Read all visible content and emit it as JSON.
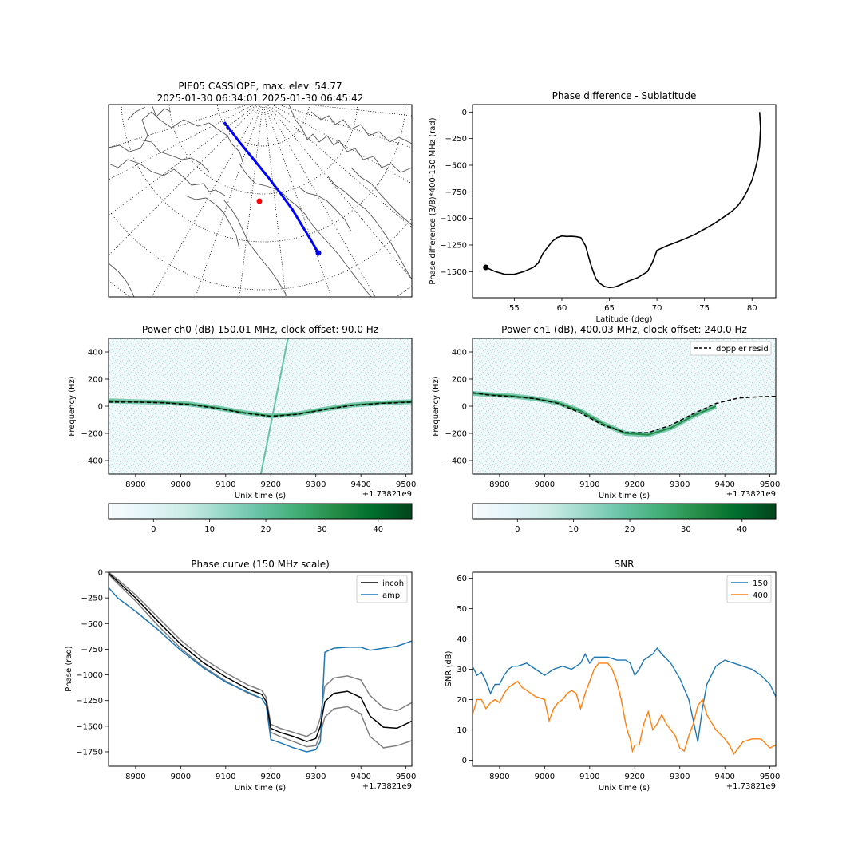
{
  "figure": {
    "map_title_line1": "PIE05 CASSIOPE, max. elev: 54.77",
    "map_title_line2": "2025-01-30 06:34:01 2025-01-30 06:45:42"
  },
  "chart_data": [
    {
      "id": "phase_diff",
      "type": "line",
      "title": "Phase difference - Sublatitude",
      "xlabel": "Latitude (deg)",
      "ylabel": "Phase difference (3/8)*400-150 MHz (rad)",
      "xlim": [
        50.6,
        82.5
      ],
      "ylim": [
        -1745,
        70
      ],
      "xticks": [
        55,
        60,
        65,
        70,
        75,
        80
      ],
      "yticks": [
        0,
        -250,
        -500,
        -750,
        -1000,
        -1250,
        -1500
      ],
      "series": [
        {
          "color": "#000000",
          "x": [
            52.0,
            53.0,
            54.0,
            55.0,
            56.0,
            57.0,
            57.5,
            58.0,
            58.5,
            59.0,
            59.5,
            60.0,
            60.5,
            61.0,
            61.5,
            62.0,
            62.5,
            63.0,
            63.3,
            63.6,
            64.0,
            64.5,
            65.0,
            65.5,
            66.0,
            67.0,
            68.0,
            69.0,
            69.5,
            69.8,
            70.0,
            71.0,
            72.0,
            73.0,
            74.0,
            75.0,
            76.0,
            77.0,
            78.0,
            78.5,
            79.0,
            79.5,
            80.0,
            80.3,
            80.6,
            80.8,
            80.9,
            80.8
          ],
          "values": [
            -1460,
            -1500,
            -1525,
            -1525,
            -1500,
            -1460,
            -1420,
            -1330,
            -1270,
            -1215,
            -1180,
            -1165,
            -1170,
            -1168,
            -1172,
            -1180,
            -1260,
            -1420,
            -1500,
            -1570,
            -1610,
            -1640,
            -1650,
            -1645,
            -1630,
            -1590,
            -1555,
            -1500,
            -1420,
            -1350,
            -1300,
            -1260,
            -1225,
            -1190,
            -1150,
            -1100,
            -1050,
            -990,
            -925,
            -880,
            -820,
            -740,
            -640,
            -550,
            -440,
            -320,
            -150,
            0
          ]
        }
      ],
      "marker": {
        "x": 52.0,
        "y": -1460
      }
    },
    {
      "id": "power_ch0",
      "type": "heatmap",
      "title": "Power ch0 (dB) 150.01 MHz, clock offset: 90.0 Hz",
      "xlabel": "Unix time (s)",
      "ylabel": "Frequency (Hz)",
      "offset_label": "+1.73821e9",
      "xlim": [
        8840,
        9513
      ],
      "ylim": [
        -500,
        500
      ],
      "xticks": [
        8900,
        9000,
        9100,
        9200,
        9300,
        9400,
        9500
      ],
      "yticks": [
        400,
        200,
        0,
        -200,
        -400
      ],
      "doppler_resid": {
        "x": [
          8840,
          8900,
          8960,
          9020,
          9080,
          9140,
          9200,
          9260,
          9320,
          9380,
          9440,
          9513
        ],
        "values": [
          30,
          30,
          25,
          12,
          -15,
          -50,
          -75,
          -60,
          -25,
          5,
          20,
          30
        ]
      },
      "signal_track": {
        "x": [
          8840,
          8900,
          8960,
          9020,
          9080,
          9140,
          9200,
          9260,
          9320,
          9380,
          9440,
          9513
        ],
        "values": [
          40,
          33,
          28,
          15,
          -12,
          -47,
          -72,
          -57,
          -22,
          8,
          23,
          33
        ]
      },
      "interference_line": {
        "x": [
          9178,
          9238
        ],
        "values": [
          -500,
          500
        ]
      },
      "colorbar": {
        "range": [
          -8,
          46
        ],
        "ticks": [
          0,
          10,
          20,
          30,
          40
        ]
      }
    },
    {
      "id": "power_ch1",
      "type": "heatmap",
      "title": "Power ch1 (dB), 400.03 MHz, clock offset: 240.0 Hz",
      "xlabel": "Unix time (s)",
      "ylabel": "Frequency (Hz)",
      "offset_label": "+1.73821e9",
      "xlim": [
        8840,
        9513
      ],
      "ylim": [
        -500,
        500
      ],
      "xticks": [
        8900,
        9000,
        9100,
        9200,
        9300,
        9400,
        9500
      ],
      "yticks": [
        400,
        200,
        0,
        -200,
        -400
      ],
      "legend": [
        "doppler resid"
      ],
      "doppler_resid": {
        "x": [
          8840,
          8880,
          8930,
          8980,
          9030,
          9080,
          9130,
          9180,
          9230,
          9280,
          9330,
          9380,
          9430,
          9480,
          9513
        ],
        "values": [
          100,
          80,
          70,
          55,
          20,
          -50,
          -140,
          -195,
          -195,
          -140,
          -55,
          20,
          60,
          70,
          72
        ]
      },
      "signal_track": {
        "x": [
          8840,
          8880,
          8930,
          8980,
          9030,
          9080,
          9130,
          9180,
          9230,
          9280,
          9330,
          9380
        ],
        "values": [
          95,
          85,
          75,
          55,
          25,
          -35,
          -130,
          -200,
          -210,
          -160,
          -70,
          0
        ]
      },
      "colorbar": {
        "range": [
          -8,
          46
        ],
        "ticks": [
          0,
          10,
          20,
          30,
          40
        ]
      }
    },
    {
      "id": "phase_curve",
      "type": "line",
      "title": "Phase curve (150 MHz scale)",
      "xlabel": "Unix time (s)",
      "ylabel": "Phase (rad)",
      "offset_label": "+1.73821e9",
      "xlim": [
        8840,
        9513
      ],
      "ylim": [
        -1890,
        0
      ],
      "xticks": [
        8900,
        9000,
        9100,
        9200,
        9300,
        9400,
        9500
      ],
      "yticks": [
        0,
        -250,
        -500,
        -750,
        -1000,
        -1250,
        -1500,
        -1750
      ],
      "legend": [
        "incoh",
        "amp"
      ],
      "x": [
        8840,
        8860,
        8900,
        8950,
        9000,
        9050,
        9100,
        9150,
        9180,
        9190,
        9200,
        9220,
        9250,
        9280,
        9300,
        9310,
        9320,
        9340,
        9370,
        9400,
        9420,
        9450,
        9480,
        9513
      ],
      "series": [
        {
          "name": "incoh",
          "color": "#000000",
          "values": [
            -10,
            -90,
            -250,
            -480,
            -700,
            -880,
            -1020,
            -1140,
            -1190,
            -1260,
            -1520,
            -1560,
            -1600,
            -1650,
            -1620,
            -1500,
            -1260,
            -1180,
            -1160,
            -1220,
            -1400,
            -1510,
            -1520,
            -1450
          ]
        },
        {
          "name": "upper",
          "color": "#808080",
          "values": [
            0,
            -70,
            -220,
            -440,
            -660,
            -840,
            -980,
            -1100,
            -1150,
            -1220,
            -1480,
            -1520,
            -1560,
            -1600,
            -1550,
            -1420,
            -1110,
            -1030,
            -1010,
            -1050,
            -1200,
            -1320,
            -1350,
            -1270
          ]
        },
        {
          "name": "lower",
          "color": "#808080",
          "values": [
            -20,
            -110,
            -280,
            -520,
            -740,
            -920,
            -1060,
            -1180,
            -1230,
            -1300,
            -1560,
            -1600,
            -1650,
            -1700,
            -1690,
            -1580,
            -1410,
            -1330,
            -1310,
            -1380,
            -1600,
            -1710,
            -1690,
            -1640
          ]
        },
        {
          "name": "amp",
          "color": "#1f77b4",
          "values": [
            -150,
            -250,
            -380,
            -560,
            -760,
            -930,
            -1070,
            -1170,
            -1230,
            -1300,
            -1630,
            -1660,
            -1710,
            -1750,
            -1730,
            -1650,
            -780,
            -740,
            -730,
            -730,
            -760,
            -740,
            -720,
            -670
          ]
        }
      ]
    },
    {
      "id": "snr",
      "type": "line",
      "title": "SNR",
      "xlabel": "Unix time (s)",
      "ylabel": "SNR (dB)",
      "offset_label": "+1.73821e9",
      "xlim": [
        8840,
        9513
      ],
      "ylim": [
        -2,
        62
      ],
      "xticks": [
        8900,
        9000,
        9100,
        9200,
        9300,
        9400,
        9500
      ],
      "yticks": [
        0,
        10,
        20,
        30,
        40,
        50,
        60
      ],
      "legend": [
        "150",
        "400"
      ],
      "series": [
        {
          "name": "150",
          "color": "#1f77b4",
          "x": [
            8840,
            8850,
            8860,
            8870,
            8880,
            8890,
            8900,
            8910,
            8920,
            8930,
            8940,
            8960,
            8980,
            9000,
            9020,
            9040,
            9060,
            9080,
            9090,
            9100,
            9110,
            9120,
            9140,
            9160,
            9180,
            9190,
            9200,
            9210,
            9220,
            9240,
            9250,
            9260,
            9280,
            9300,
            9320,
            9330,
            9340,
            9350,
            9360,
            9380,
            9400,
            9420,
            9440,
            9460,
            9480,
            9500,
            9513
          ],
          "values": [
            31,
            28,
            29,
            26,
            22,
            25,
            25,
            28,
            30,
            31,
            31,
            32,
            30,
            28,
            30,
            31,
            30,
            32,
            35,
            32,
            34,
            34,
            34,
            33,
            33,
            32,
            28,
            30,
            33,
            35,
            37,
            35,
            32,
            27,
            20,
            13,
            6,
            17,
            25,
            31,
            33,
            32,
            31,
            30,
            28,
            25,
            21
          ]
        },
        {
          "name": "400",
          "color": "#ff7f0e",
          "x": [
            8840,
            8850,
            8860,
            8870,
            8880,
            8890,
            8900,
            8910,
            8920,
            8930,
            8940,
            8950,
            8960,
            8980,
            9000,
            9010,
            9020,
            9030,
            9040,
            9050,
            9060,
            9070,
            9080,
            9090,
            9100,
            9110,
            9120,
            9130,
            9140,
            9150,
            9160,
            9170,
            9180,
            9185,
            9190,
            9195,
            9200,
            9210,
            9220,
            9230,
            9240,
            9250,
            9260,
            9270,
            9280,
            9290,
            9300,
            9310,
            9320,
            9330,
            9340,
            9350,
            9360,
            9380,
            9400,
            9410,
            9420,
            9440,
            9460,
            9480,
            9500,
            9513
          ],
          "values": [
            15,
            20,
            20,
            17,
            19,
            20,
            19,
            22,
            24,
            25,
            26,
            24,
            23,
            21,
            20,
            13,
            17,
            19,
            20,
            22,
            23,
            22,
            17,
            22,
            26,
            30,
            32,
            32,
            32,
            30,
            26,
            20,
            12,
            9,
            7,
            3,
            5,
            5,
            12,
            16,
            10,
            12,
            15,
            12,
            10,
            8,
            4,
            3,
            8,
            12,
            18,
            20,
            15,
            10,
            7,
            5,
            2,
            6,
            7,
            7,
            4,
            5
          ]
        }
      ]
    }
  ]
}
